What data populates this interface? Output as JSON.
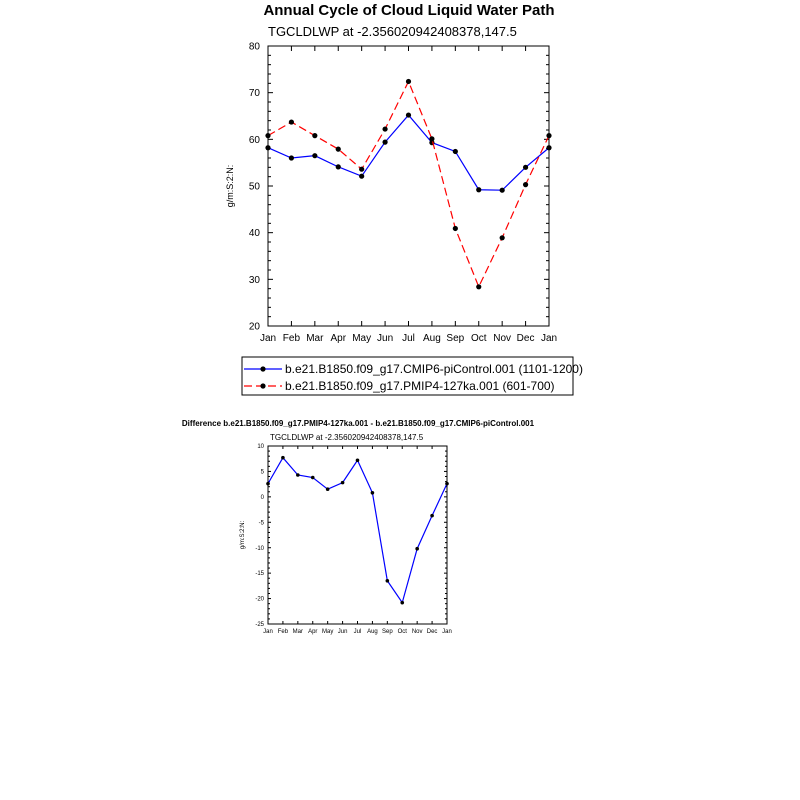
{
  "chart_data": [
    {
      "type": "line",
      "title": "Annual Cycle of Cloud Liquid Water Path",
      "subtitle": "TGCLDLWP at -2.356020942408378,147.5",
      "xlabel": "",
      "ylabel": "g/m:S:2:N:",
      "categories": [
        "Jan",
        "Feb",
        "Mar",
        "Apr",
        "May",
        "Jun",
        "Jul",
        "Aug",
        "Sep",
        "Oct",
        "Nov",
        "Dec",
        "Jan"
      ],
      "ylim": [
        20,
        80
      ],
      "yticks": [
        20,
        30,
        40,
        50,
        60,
        70,
        80
      ],
      "grid": false,
      "legend_position": "bottom",
      "series": [
        {
          "name": "b.e21.B1850.f09_g17.CMIP6-piControl.001 (1101-1200)",
          "color": "#0000ff",
          "line_style": "solid",
          "values": [
            58.2,
            56.0,
            56.5,
            54.1,
            52.1,
            59.4,
            65.2,
            59.3,
            57.4,
            49.2,
            49.1,
            54.0,
            58.2
          ]
        },
        {
          "name": "b.e21.B1850.f09_g17.PMIP4-127ka.001 (601-700)",
          "color": "#ff0000",
          "line_style": "dashed",
          "values": [
            60.8,
            63.7,
            60.8,
            57.9,
            53.6,
            62.2,
            72.4,
            60.1,
            40.9,
            28.4,
            38.9,
            50.3,
            60.8
          ]
        }
      ]
    },
    {
      "type": "line",
      "title": "Difference b.e21.B1850.f09_g17.PMIP4-127ka.001 - b.e21.B1850.f09_g17.CMIP6-piControl.001",
      "subtitle": "TGCLDLWP at -2.356020942408378,147.5",
      "xlabel": "",
      "ylabel": "g/m:S:2:N:",
      "categories": [
        "Jan",
        "Feb",
        "Mar",
        "Apr",
        "May",
        "Jun",
        "Jul",
        "Aug",
        "Sep",
        "Oct",
        "Nov",
        "Dec",
        "Jan"
      ],
      "ylim": [
        -25,
        10
      ],
      "yticks": [
        -25,
        -20,
        -15,
        -10,
        -5,
        0,
        5,
        10
      ],
      "grid": false,
      "series": [
        {
          "color": "#0000ff",
          "line_style": "solid",
          "values": [
            2.6,
            7.7,
            4.3,
            3.8,
            1.5,
            2.8,
            7.2,
            0.8,
            -16.5,
            -20.8,
            -10.2,
            -3.7,
            2.6
          ]
        }
      ]
    }
  ]
}
